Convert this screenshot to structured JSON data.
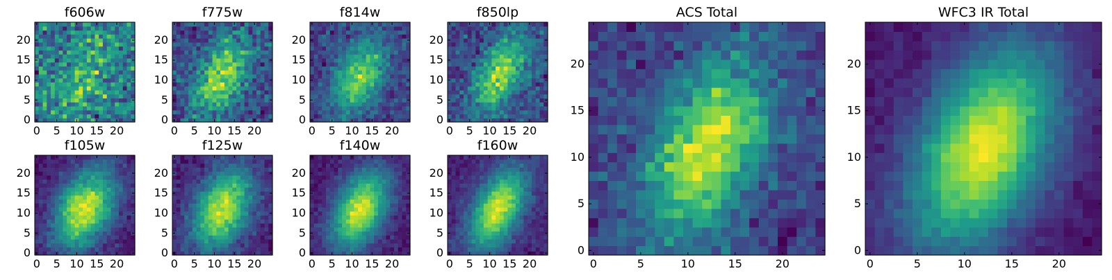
{
  "figure": {
    "type": "heatmap",
    "colormap": [
      "#440154",
      "#482878",
      "#3e4989",
      "#31688e",
      "#26828e",
      "#1f9e89",
      "#35b779",
      "#6ece58",
      "#b5de2b",
      "#fde725"
    ]
  },
  "chart_data": [
    {
      "type": "heatmap",
      "title": "f606w",
      "grid_size": 25,
      "xticks": [
        0,
        5,
        10,
        15,
        20
      ],
      "yticks": [
        0,
        5,
        10,
        15,
        20
      ],
      "xlim": [
        0,
        24
      ],
      "ylim": [
        0,
        24
      ],
      "signal": 0.25,
      "noise": 0.45,
      "blob": {
        "cx": 12,
        "cy": 11,
        "sx": 5,
        "sy": 8,
        "tilt": 0.3
      },
      "seed": 11,
      "value_range": [
        0,
        1
      ]
    },
    {
      "type": "heatmap",
      "title": "f775w",
      "grid_size": 25,
      "xticks": [
        0,
        5,
        10,
        15,
        20
      ],
      "yticks": [
        0,
        5,
        10,
        15,
        20
      ],
      "xlim": [
        0,
        24
      ],
      "ylim": [
        0,
        24
      ],
      "signal": 0.55,
      "noise": 0.3,
      "blob": {
        "cx": 12,
        "cy": 11,
        "sx": 4.5,
        "sy": 7,
        "tilt": 0.3
      },
      "seed": 22,
      "value_range": [
        0,
        1
      ]
    },
    {
      "type": "heatmap",
      "title": "f814w",
      "grid_size": 25,
      "xticks": [
        0,
        5,
        10,
        15,
        20
      ],
      "yticks": [
        0,
        5,
        10,
        15,
        20
      ],
      "xlim": [
        0,
        24
      ],
      "ylim": [
        0,
        24
      ],
      "signal": 0.7,
      "noise": 0.28,
      "blob": {
        "cx": 12,
        "cy": 11,
        "sx": 4,
        "sy": 6.5,
        "tilt": 0.3
      },
      "seed": 33,
      "value_range": [
        0,
        1
      ]
    },
    {
      "type": "heatmap",
      "title": "f850lp",
      "grid_size": 25,
      "xticks": [
        0,
        5,
        10,
        15,
        20
      ],
      "yticks": [
        0,
        5,
        10,
        15,
        20
      ],
      "xlim": [
        0,
        24
      ],
      "ylim": [
        0,
        24
      ],
      "signal": 0.65,
      "noise": 0.3,
      "blob": {
        "cx": 13,
        "cy": 12,
        "sx": 4,
        "sy": 7,
        "tilt": 0.35
      },
      "seed": 44,
      "value_range": [
        0,
        1
      ]
    },
    {
      "type": "heatmap",
      "title": "f105w",
      "grid_size": 25,
      "xticks": [
        0,
        5,
        10,
        15,
        20
      ],
      "yticks": [
        0,
        5,
        10,
        15,
        20
      ],
      "xlim": [
        0,
        24
      ],
      "ylim": [
        0,
        24
      ],
      "signal": 0.8,
      "noise": 0.15,
      "blob": {
        "cx": 12,
        "cy": 11,
        "sx": 5,
        "sy": 7,
        "tilt": 0.3
      },
      "seed": 55,
      "value_range": [
        0,
        1
      ]
    },
    {
      "type": "heatmap",
      "title": "f125w",
      "grid_size": 25,
      "xticks": [
        0,
        5,
        10,
        15,
        20
      ],
      "yticks": [
        0,
        5,
        10,
        15,
        20
      ],
      "xlim": [
        0,
        24
      ],
      "ylim": [
        0,
        24
      ],
      "signal": 0.8,
      "noise": 0.16,
      "blob": {
        "cx": 12,
        "cy": 11,
        "sx": 4.8,
        "sy": 7,
        "tilt": 0.3
      },
      "seed": 66,
      "value_range": [
        0,
        1
      ]
    },
    {
      "type": "heatmap",
      "title": "f140w",
      "grid_size": 25,
      "xticks": [
        0,
        5,
        10,
        15,
        20
      ],
      "yticks": [
        0,
        5,
        10,
        15,
        20
      ],
      "xlim": [
        0,
        24
      ],
      "ylim": [
        0,
        24
      ],
      "signal": 0.85,
      "noise": 0.13,
      "blob": {
        "cx": 12,
        "cy": 11,
        "sx": 4.5,
        "sy": 7,
        "tilt": 0.3
      },
      "seed": 77,
      "value_range": [
        0,
        1
      ]
    },
    {
      "type": "heatmap",
      "title": "f160w",
      "grid_size": 25,
      "xticks": [
        0,
        5,
        10,
        15,
        20
      ],
      "yticks": [
        0,
        5,
        10,
        15,
        20
      ],
      "xlim": [
        0,
        24
      ],
      "ylim": [
        0,
        24
      ],
      "signal": 0.9,
      "noise": 0.14,
      "blob": {
        "cx": 12,
        "cy": 11,
        "sx": 4.2,
        "sy": 7,
        "tilt": 0.35
      },
      "seed": 88,
      "value_range": [
        0,
        1
      ]
    },
    {
      "type": "heatmap",
      "title": "ACS Total",
      "grid_size": 25,
      "xticks": [
        0,
        5,
        10,
        15,
        20
      ],
      "yticks": [
        0,
        5,
        10,
        15,
        20
      ],
      "xlim": [
        0,
        24
      ],
      "ylim": [
        0,
        24
      ],
      "signal": 0.7,
      "noise": 0.22,
      "blob": {
        "cx": 12,
        "cy": 11,
        "sx": 4,
        "sy": 6.5,
        "tilt": 0.3
      },
      "seed": 99,
      "value_range": [
        0,
        1
      ]
    },
    {
      "type": "heatmap",
      "title": "WFC3 IR Total",
      "grid_size": 25,
      "xticks": [
        0,
        5,
        10,
        15,
        20
      ],
      "yticks": [
        0,
        5,
        10,
        15,
        20
      ],
      "xlim": [
        0,
        24
      ],
      "ylim": [
        0,
        24
      ],
      "signal": 0.85,
      "noise": 0.09,
      "blob": {
        "cx": 12,
        "cy": 11,
        "sx": 4.8,
        "sy": 7.5,
        "tilt": 0.3
      },
      "seed": 111,
      "value_range": [
        0,
        1
      ]
    }
  ]
}
